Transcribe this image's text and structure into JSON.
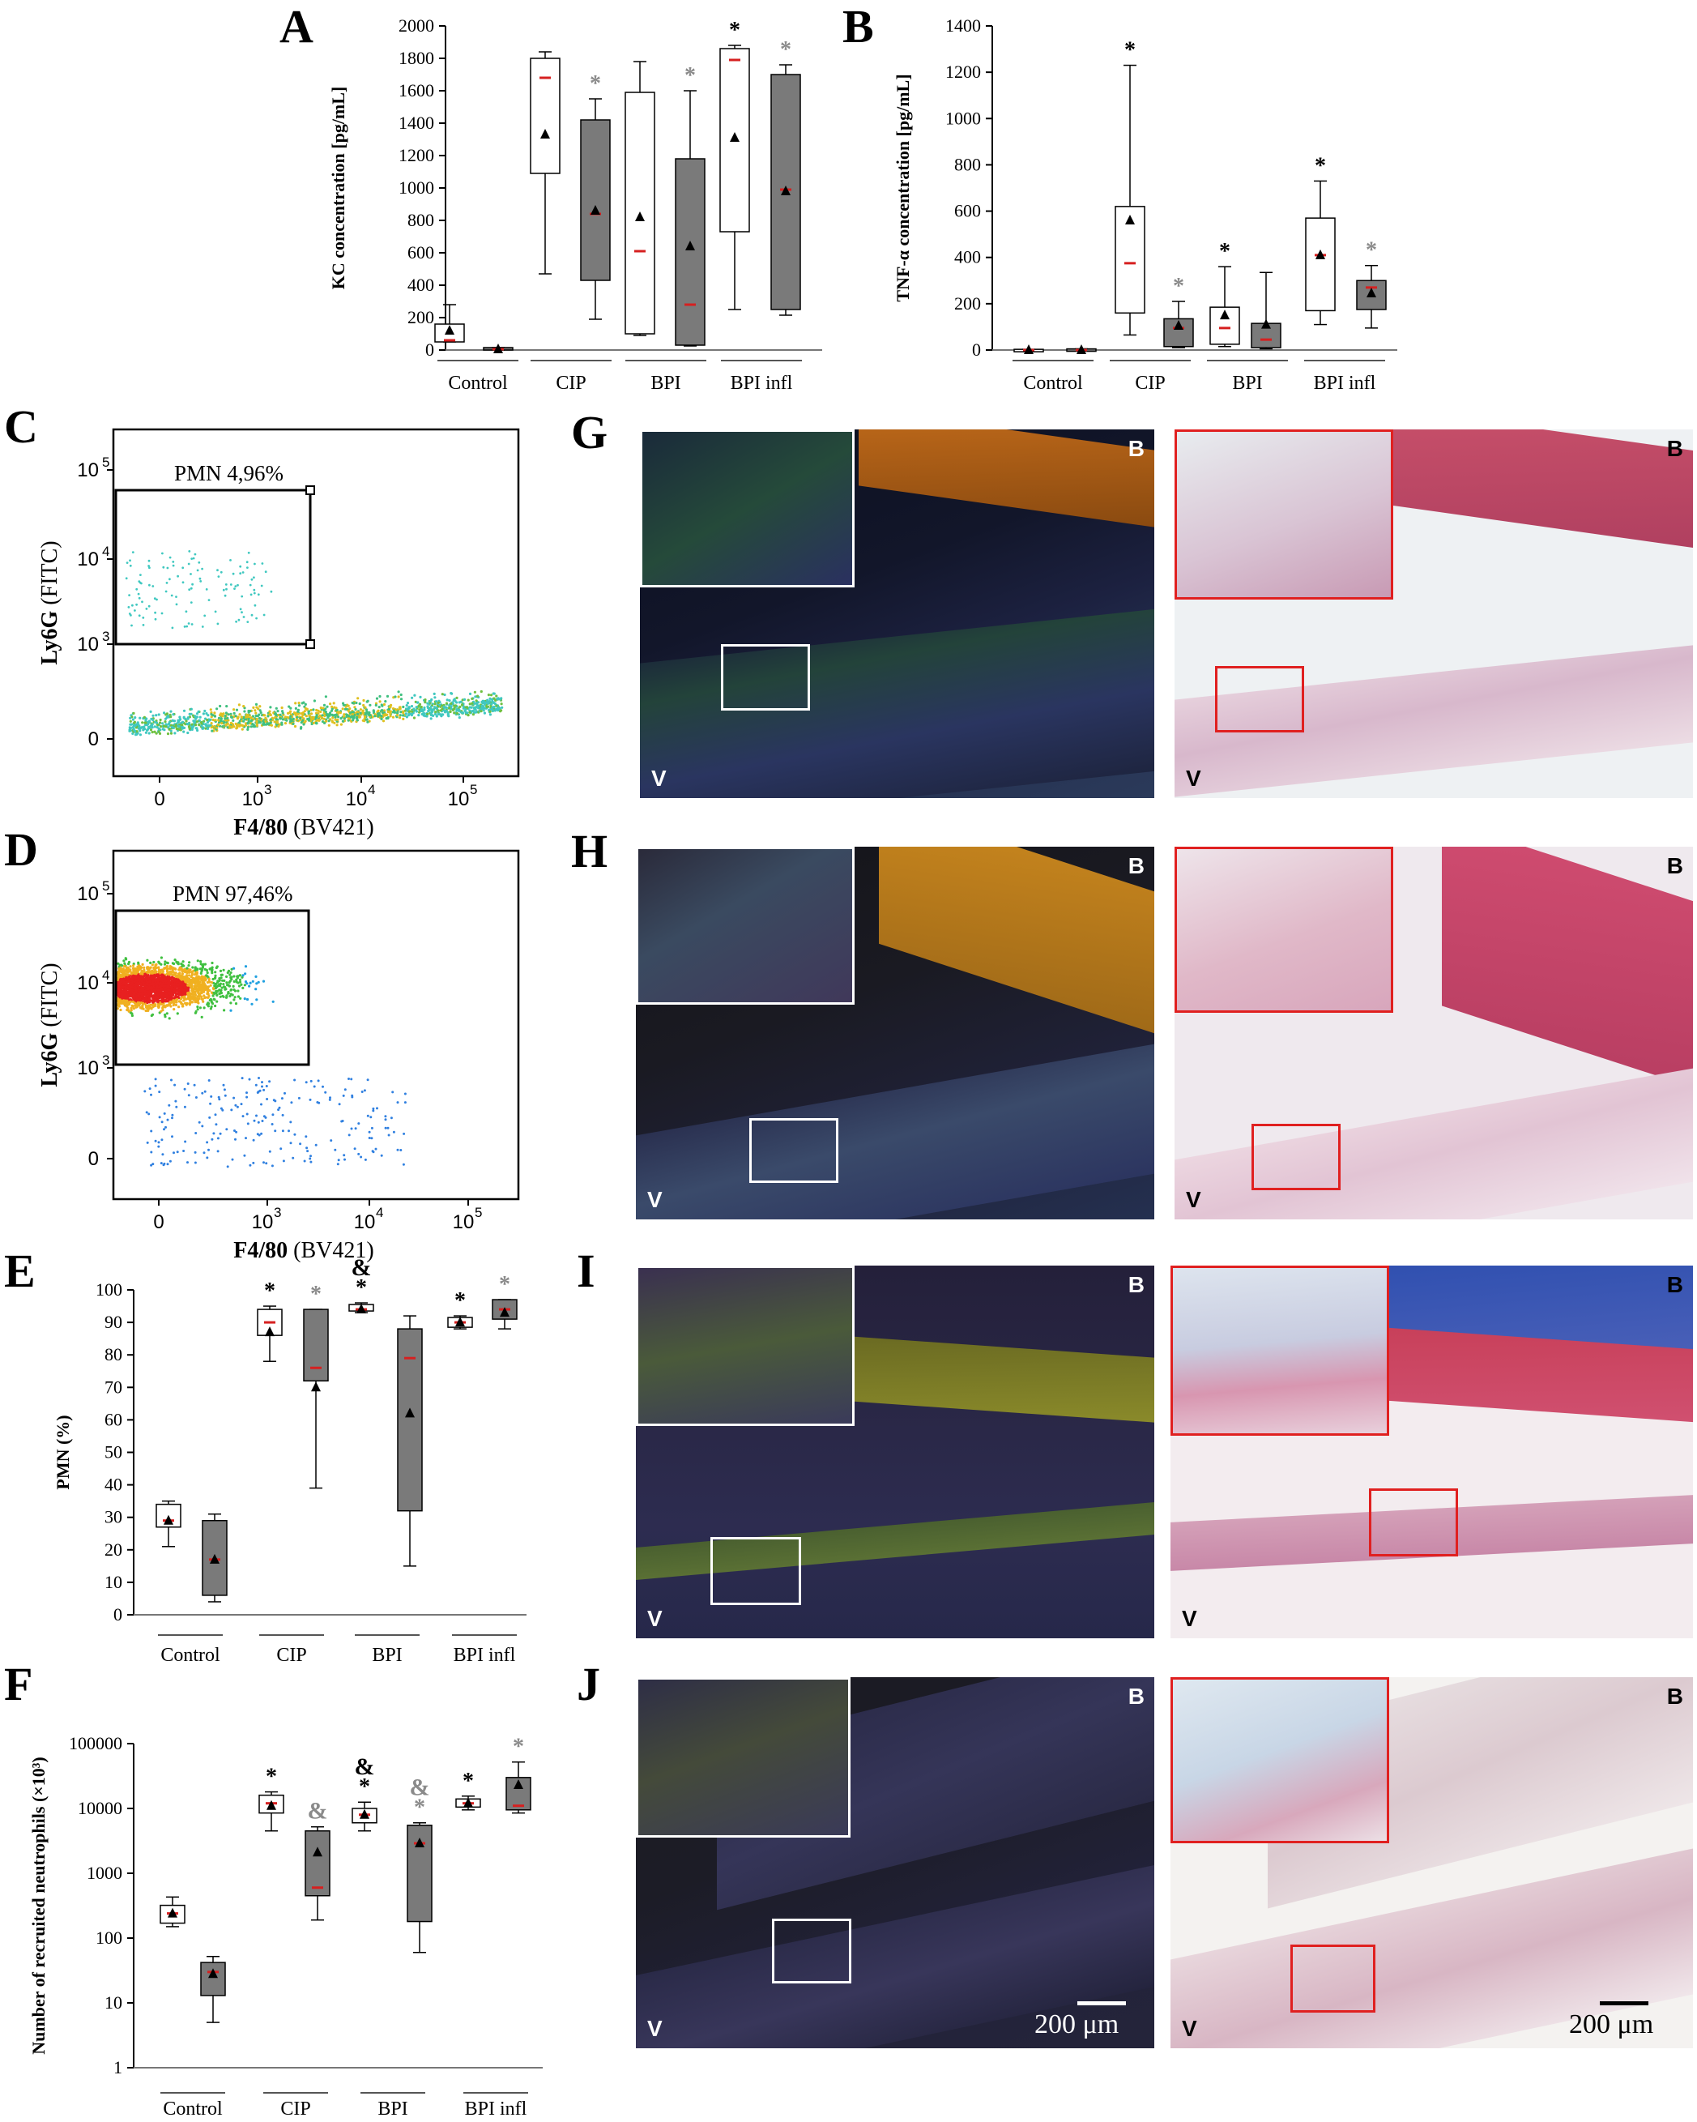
{
  "colors": {
    "mean_marker": "#000000",
    "median_marker": "#d62020",
    "sig_black": "#000000",
    "sig_gray": "#8a8a8a",
    "box_white": "#ffffff",
    "box_gray": "#7a7a7a",
    "fluo_frame": "#ffffff",
    "histo_frame": "#e02020"
  },
  "letters": {
    "A": "A",
    "B": "B",
    "C": "C",
    "D": "D",
    "E": "E",
    "F": "F",
    "G": "G",
    "H": "H",
    "I": "I",
    "J": "J"
  },
  "chart_data": [
    {
      "panel": "A",
      "type": "box",
      "ylabel": "KC concentration [pg/mL]",
      "ylim": [
        0,
        2000
      ],
      "yticks": [
        "0",
        "200",
        "400",
        "600",
        "800",
        "1000",
        "1200",
        "1400",
        "1600",
        "1800",
        "2000"
      ],
      "categories": [
        "Control",
        "CIP",
        "BPI",
        "BPI infl"
      ],
      "boxes": [
        {
          "group": "Control",
          "fill": "white",
          "min": 50,
          "q1": 50,
          "q3": 160,
          "max": 280,
          "median": 60,
          "mean": 120,
          "sig": ""
        },
        {
          "group": "Control",
          "fill": "gray",
          "min": 0,
          "q1": 0,
          "q3": 15,
          "max": 15,
          "median": 5,
          "mean": 5,
          "sig": ""
        },
        {
          "group": "CIP",
          "fill": "white",
          "min": 470,
          "q1": 1090,
          "q3": 1800,
          "max": 1840,
          "median": 1680,
          "mean": 1330,
          "sig": ""
        },
        {
          "group": "CIP",
          "fill": "gray",
          "min": 190,
          "q1": 430,
          "q3": 1420,
          "max": 1550,
          "median": 840,
          "mean": 860,
          "sig": "*",
          "sigColor": "gray"
        },
        {
          "group": "BPI",
          "fill": "white",
          "min": 90,
          "q1": 100,
          "q3": 1590,
          "max": 1780,
          "median": 610,
          "mean": 820,
          "sig": ""
        },
        {
          "group": "BPI",
          "fill": "gray",
          "min": 25,
          "q1": 30,
          "q3": 1180,
          "max": 1600,
          "median": 280,
          "mean": 640,
          "sig": "*",
          "sigColor": "gray"
        },
        {
          "group": "BPI infl",
          "fill": "white",
          "min": 250,
          "q1": 730,
          "q3": 1860,
          "max": 1880,
          "median": 1790,
          "mean": 1310,
          "sig": "*",
          "sigColor": "black"
        },
        {
          "group": "BPI infl",
          "fill": "gray",
          "min": 215,
          "q1": 250,
          "q3": 1700,
          "max": 1760,
          "median": 990,
          "mean": 980,
          "sig": "*",
          "sigColor": "gray"
        }
      ]
    },
    {
      "panel": "B",
      "type": "box",
      "ylabel": "TNF-α concentration [pg/mL]",
      "ylim": [
        0,
        1400
      ],
      "yticks": [
        "0",
        "200",
        "400",
        "600",
        "800",
        "1000",
        "1200",
        "1400"
      ],
      "categories": [
        "Control",
        "CIP",
        "BPI",
        "BPI infl"
      ],
      "boxes": [
        {
          "group": "Control",
          "fill": "white",
          "min": 0,
          "q1": 0,
          "q3": 3,
          "max": 3,
          "median": 0,
          "mean": 0,
          "sig": ""
        },
        {
          "group": "Control",
          "fill": "gray",
          "min": 0,
          "q1": 0,
          "q3": 5,
          "max": 5,
          "median": 0,
          "mean": 0,
          "sig": ""
        },
        {
          "group": "CIP",
          "fill": "white",
          "min": 65,
          "q1": 160,
          "q3": 620,
          "max": 1230,
          "median": 375,
          "mean": 560,
          "sig": "*",
          "sigColor": "black"
        },
        {
          "group": "CIP",
          "fill": "gray",
          "min": 10,
          "q1": 15,
          "q3": 135,
          "max": 210,
          "median": 95,
          "mean": 105,
          "sig": "*",
          "sigColor": "gray"
        },
        {
          "group": "BPI",
          "fill": "white",
          "min": 15,
          "q1": 25,
          "q3": 185,
          "max": 360,
          "median": 95,
          "mean": 150,
          "sig": "*",
          "sigColor": "black"
        },
        {
          "group": "BPI",
          "fill": "gray",
          "min": 5,
          "q1": 10,
          "q3": 115,
          "max": 335,
          "median": 45,
          "mean": 110,
          "sig": ""
        },
        {
          "group": "BPI infl",
          "fill": "white",
          "min": 110,
          "q1": 170,
          "q3": 570,
          "max": 730,
          "median": 410,
          "mean": 410,
          "sig": "*",
          "sigColor": "black"
        },
        {
          "group": "BPI infl",
          "fill": "gray",
          "min": 95,
          "q1": 175,
          "q3": 300,
          "max": 365,
          "median": 270,
          "mean": 245,
          "sig": "*",
          "sigColor": "gray"
        }
      ]
    },
    {
      "panel": "E",
      "type": "box",
      "ylabel": "PMN (%)",
      "ylim": [
        0,
        100
      ],
      "yticks": [
        "0",
        "10",
        "20",
        "30",
        "40",
        "50",
        "60",
        "70",
        "80",
        "90",
        "100"
      ],
      "categories": [
        "Control",
        "CIP",
        "BPI",
        "BPI infl"
      ],
      "boxes": [
        {
          "group": "Control",
          "fill": "white",
          "min": 21,
          "q1": 27,
          "q3": 34,
          "max": 35,
          "median": 29,
          "mean": 29,
          "sig": ""
        },
        {
          "group": "Control",
          "fill": "gray",
          "min": 4,
          "q1": 6,
          "q3": 29,
          "max": 31,
          "median": 17,
          "mean": 17,
          "sig": ""
        },
        {
          "group": "CIP",
          "fill": "white",
          "min": 78,
          "q1": 86,
          "q3": 94,
          "max": 95,
          "median": 90,
          "mean": 87,
          "sig": "*",
          "sigColor": "black"
        },
        {
          "group": "CIP",
          "fill": "gray",
          "min": 39,
          "q1": 72,
          "q3": 94,
          "max": 94,
          "median": 76,
          "mean": 70,
          "sig": "*",
          "sigColor": "gray"
        },
        {
          "group": "BPI",
          "fill": "white",
          "min": 93,
          "q1": 93.5,
          "q3": 95.5,
          "max": 96,
          "median": 94,
          "mean": 94,
          "sig": "*",
          "sigColor": "black",
          "sig2": "&",
          "sig2Color": "black"
        },
        {
          "group": "BPI",
          "fill": "gray",
          "min": 15,
          "q1": 32,
          "q3": 88,
          "max": 92,
          "median": 79,
          "mean": 62,
          "sig": ""
        },
        {
          "group": "BPI infl",
          "fill": "white",
          "min": 88,
          "q1": 88.5,
          "q3": 91.5,
          "max": 92,
          "median": 90,
          "mean": 90,
          "sig": "*",
          "sigColor": "black"
        },
        {
          "group": "BPI infl",
          "fill": "gray",
          "min": 88,
          "q1": 91,
          "q3": 97,
          "max": 97,
          "median": 94,
          "mean": 93,
          "sig": "*",
          "sigColor": "gray"
        }
      ]
    },
    {
      "panel": "F",
      "type": "box",
      "scale": "log",
      "ylabel": "Number of recruited neutrophils (×10³)",
      "ylim": [
        1,
        100000
      ],
      "yticks": [
        "1",
        "10",
        "100",
        "1000",
        "10000",
        "100000"
      ],
      "categories": [
        "Control",
        "CIP",
        "BPI",
        "BPI infl"
      ],
      "boxes": [
        {
          "group": "Control",
          "fill": "white",
          "min": 150,
          "q1": 170,
          "q3": 320,
          "max": 430,
          "median": 240,
          "mean": 240,
          "sig": ""
        },
        {
          "group": "Control",
          "fill": "gray",
          "min": 5,
          "q1": 13,
          "q3": 42,
          "max": 52,
          "median": 30,
          "mean": 28,
          "sig": ""
        },
        {
          "group": "CIP",
          "fill": "white",
          "min": 4500,
          "q1": 8500,
          "q3": 16000,
          "max": 18000,
          "median": 12000,
          "mean": 11000,
          "sig": "*",
          "sigColor": "black"
        },
        {
          "group": "CIP",
          "fill": "gray",
          "min": 190,
          "q1": 450,
          "q3": 4500,
          "max": 5200,
          "median": 600,
          "mean": 2100,
          "sig": "&",
          "sigColor": "gray"
        },
        {
          "group": "BPI",
          "fill": "white",
          "min": 4500,
          "q1": 6000,
          "q3": 10000,
          "max": 12500,
          "median": 8000,
          "mean": 8000,
          "sig": "*",
          "sigColor": "black",
          "sig2": "&",
          "sig2Color": "black"
        },
        {
          "group": "BPI",
          "fill": "gray",
          "min": 60,
          "q1": 180,
          "q3": 5500,
          "max": 6000,
          "median": 2900,
          "mean": 2900,
          "sig": "*",
          "sigColor": "gray",
          "sig2": "&",
          "sig2Color": "gray"
        },
        {
          "group": "BPI infl",
          "fill": "white",
          "min": 9500,
          "q1": 10500,
          "q3": 14000,
          "max": 15500,
          "median": 12000,
          "mean": 12000,
          "sig": "*",
          "sigColor": "black"
        },
        {
          "group": "BPI infl",
          "fill": "gray",
          "min": 8500,
          "q1": 9500,
          "q3": 30000,
          "max": 52000,
          "median": 11000,
          "mean": 23000,
          "sig": "*",
          "sigColor": "gray"
        }
      ]
    }
  ],
  "flow": [
    {
      "panel": "C",
      "gate_label": "PMN 4,96%",
      "ylabel_bold": "Ly6G",
      "ylabel_rest": " (FITC)",
      "xlabel_bold": "F4/80",
      "xlabel_rest": " (BV421)",
      "yticks": [
        "0",
        "10",
        "10",
        "10"
      ],
      "yexp": [
        "",
        "3",
        "4",
        "5"
      ],
      "xticks": [
        "0",
        "10",
        "10",
        "10"
      ],
      "xexp": [
        "",
        "3",
        "4",
        "5"
      ]
    },
    {
      "panel": "D",
      "gate_label": "PMN 97,46%",
      "ylabel_bold": "Ly6G",
      "ylabel_rest": " (FITC)",
      "xlabel_bold": "F4/80",
      "xlabel_rest": " (BV421)",
      "yticks": [
        "0",
        "10",
        "10",
        "10"
      ],
      "yexp": [
        "",
        "3",
        "4",
        "5"
      ],
      "xticks": [
        "0",
        "10",
        "10",
        "10"
      ],
      "xexp": [
        "",
        "3",
        "4",
        "5"
      ]
    }
  ],
  "micro": {
    "tag_b": "B",
    "tag_v": "V",
    "scale": "200 μm"
  }
}
